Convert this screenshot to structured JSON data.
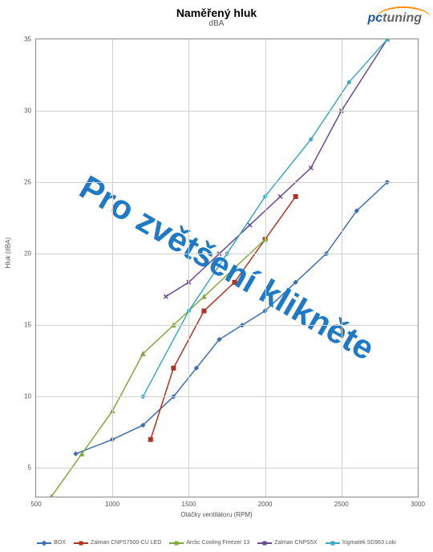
{
  "chart": {
    "type": "line",
    "title": "Naměřený hluk",
    "subtitle": "dBA",
    "logo_pc": "pc",
    "logo_tuning": "tuning",
    "overlay_text": "Pro zvětšení klikněte",
    "xlabel": "Otáčky ventilátoru (RPM)",
    "ylabel": "Hluk (dBA)",
    "xlim": [
      500,
      3000
    ],
    "ylim": [
      3,
      35
    ],
    "xtick_step": 500,
    "xticks": [
      500,
      1000,
      1500,
      2000,
      2500,
      3000
    ],
    "yticks": [
      5,
      10,
      15,
      20,
      25,
      30,
      35
    ],
    "background_color": "#ffffff",
    "grid_color": "#d0d0d0",
    "border_color": "#888888",
    "line_width": 1.5,
    "marker_size": 5,
    "series": [
      {
        "name": "BOX",
        "color": "#3c6fb3",
        "marker": "diamond",
        "x": [
          760,
          1000,
          1200,
          1400,
          1550,
          1700,
          1850,
          2000,
          2200,
          2400,
          2600,
          2800
        ],
        "y": [
          6,
          7,
          8,
          10,
          12,
          14,
          15,
          16,
          18,
          20,
          23,
          25
        ]
      },
      {
        "name": "Zalman CNPS7500-CU LED",
        "color": "#b03224",
        "marker": "square",
        "x": [
          1250,
          1400,
          1600,
          1800,
          2000,
          2200
        ],
        "y": [
          7,
          12,
          16,
          18,
          21,
          24
        ]
      },
      {
        "name": "Arctic Cooling Freezer 13",
        "color": "#7fa83e",
        "marker": "triangle",
        "x": [
          600,
          800,
          1000,
          1200,
          1400,
          1600,
          1800,
          2000
        ],
        "y": [
          3,
          6,
          9,
          13,
          15,
          17,
          19,
          21
        ]
      },
      {
        "name": "Zalman CNPS5X",
        "color": "#6a4a94",
        "marker": "x",
        "x": [
          1350,
          1500,
          1700,
          1900,
          2100,
          2300,
          2500,
          2800
        ],
        "y": [
          17,
          18,
          20,
          22,
          24,
          26,
          30,
          35
        ]
      },
      {
        "name": "Xigmatek SD963 Loki",
        "color": "#3aa9c2",
        "marker": "star",
        "x": [
          1200,
          1500,
          1750,
          2000,
          2300,
          2550,
          2800
        ],
        "y": [
          10,
          16,
          20,
          24,
          28,
          32,
          35
        ]
      }
    ]
  }
}
